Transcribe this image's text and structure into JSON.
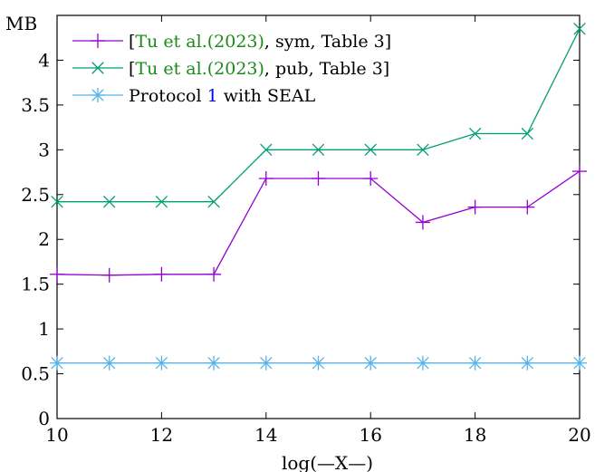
{
  "chart_data": {
    "type": "line",
    "ylabel": "MB",
    "xlabel": "log(—X—)",
    "xlim": [
      10,
      20
    ],
    "ylim": [
      0,
      4.5
    ],
    "x_ticks": [
      "10",
      "12",
      "14",
      "16",
      "18",
      "20"
    ],
    "x_tick_values": [
      10,
      12,
      14,
      16,
      18,
      20
    ],
    "y_ticks": [
      "0",
      "0.5",
      "1",
      "1.5",
      "2",
      "2.5",
      "3",
      "3.5",
      "4"
    ],
    "y_tick_values": [
      0,
      0.5,
      1,
      1.5,
      2,
      2.5,
      3,
      3.5,
      4
    ],
    "grid": false,
    "legend_position": "top-left",
    "series": [
      {
        "name": "[Tu et al.(2023), sym, Table 3]",
        "legend_parts": [
          {
            "text": "[",
            "color": "#000000"
          },
          {
            "text": "Tu et al.(2023)",
            "color": "#1a8a1a"
          },
          {
            "text": ", sym, Table 3]",
            "color": "#000000"
          }
        ],
        "color": "#9400d3",
        "marker": "plus",
        "x": [
          10,
          11,
          12,
          13,
          14,
          15,
          16,
          17,
          18,
          19,
          20
        ],
        "y": [
          1.61,
          1.6,
          1.61,
          1.61,
          2.68,
          2.68,
          2.68,
          2.19,
          2.36,
          2.36,
          2.76
        ]
      },
      {
        "name": "[Tu et al.(2023), pub, Table 3]",
        "legend_parts": [
          {
            "text": "[",
            "color": "#000000"
          },
          {
            "text": "Tu et al.(2023)",
            "color": "#1a8a1a"
          },
          {
            "text": ", pub, Table 3]",
            "color": "#000000"
          }
        ],
        "color": "#009e73",
        "marker": "cross",
        "x": [
          10,
          11,
          12,
          13,
          14,
          15,
          16,
          17,
          18,
          19,
          20
        ],
        "y": [
          2.42,
          2.42,
          2.42,
          2.42,
          3.0,
          3.0,
          3.0,
          3.0,
          3.18,
          3.18,
          4.35
        ]
      },
      {
        "name": "Protocol 1 with SEAL",
        "legend_parts": [
          {
            "text": "Protocol ",
            "color": "#000000"
          },
          {
            "text": "1",
            "color": "#0000ff"
          },
          {
            "text": " with SEAL",
            "color": "#000000"
          }
        ],
        "color": "#56b4e9",
        "marker": "star",
        "x": [
          10,
          11,
          12,
          13,
          14,
          15,
          16,
          17,
          18,
          19,
          20
        ],
        "y": [
          0.62,
          0.62,
          0.62,
          0.62,
          0.62,
          0.62,
          0.62,
          0.62,
          0.62,
          0.62,
          0.62
        ]
      }
    ]
  }
}
